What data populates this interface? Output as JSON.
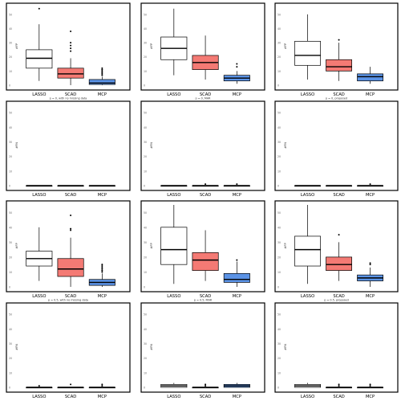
{
  "chart_data": [
    {
      "type": "boxplot",
      "ylabel": "#FP",
      "xlabel": "p = 0, with no missing data",
      "yticks": [
        "0",
        "10",
        "20",
        "30",
        "40",
        "50"
      ],
      "ylim": [
        0,
        55
      ],
      "categories": [
        "LASSO",
        "SCAD",
        "MCP"
      ],
      "series": [
        {
          "category": "LASSO",
          "fill": "#ffffff",
          "min": 3,
          "q1": 12,
          "median": 19,
          "q3": 25,
          "max": 43,
          "outliers": [
            54
          ]
        },
        {
          "category": "SCAD",
          "fill": "#f47a74",
          "min": 0,
          "q1": 5,
          "median": 8,
          "q3": 12,
          "max": 19,
          "outliers": [
            24,
            26,
            28,
            30,
            38
          ]
        },
        {
          "category": "MCP",
          "fill": "#5b93e6",
          "min": 0,
          "q1": 0.5,
          "median": 1.5,
          "q3": 4,
          "max": 6,
          "outliers": [
            7,
            8,
            9,
            10,
            11,
            12
          ]
        }
      ]
    },
    {
      "type": "boxplot",
      "ylabel": "#FP",
      "xlabel": "p = 0, MAR",
      "yticks": [
        "0",
        "10",
        "20",
        "30",
        "40",
        "50"
      ],
      "ylim": [
        0,
        55
      ],
      "categories": [
        "LASSO",
        "SCAD",
        "MCP"
      ],
      "series": [
        {
          "category": "LASSO",
          "fill": "#ffffff",
          "min": 7,
          "q1": 18,
          "median": 26,
          "q3": 34,
          "max": 54,
          "outliers": []
        },
        {
          "category": "SCAD",
          "fill": "#f47a74",
          "min": 4,
          "q1": 11,
          "median": 16,
          "q3": 21,
          "max": 35,
          "outliers": []
        },
        {
          "category": "MCP",
          "fill": "#5b93e6",
          "min": 1,
          "q1": 3,
          "median": 5,
          "q3": 7,
          "max": 10,
          "outliers": [
            13,
            15
          ]
        }
      ]
    },
    {
      "type": "boxplot",
      "ylabel": "#FP",
      "xlabel": "p = 0, proposed",
      "yticks": [
        "0",
        "10",
        "20",
        "30",
        "40",
        "50"
      ],
      "ylim": [
        0,
        55
      ],
      "categories": [
        "LASSO",
        "SCAD",
        "MCP"
      ],
      "series": [
        {
          "category": "LASSO",
          "fill": "#ffffff",
          "min": 4,
          "q1": 14,
          "median": 21,
          "q3": 31,
          "max": 50,
          "outliers": []
        },
        {
          "category": "SCAD",
          "fill": "#f47a74",
          "min": 3,
          "q1": 10,
          "median": 13,
          "q3": 18,
          "max": 30,
          "outliers": [
            32
          ]
        },
        {
          "category": "MCP",
          "fill": "#5b93e6",
          "min": 1,
          "q1": 3,
          "median": 6,
          "q3": 8,
          "max": 13,
          "outliers": []
        }
      ]
    },
    {
      "type": "boxplot",
      "ylabel": "#FN",
      "xlabel": "",
      "yticks": [
        "0",
        "10",
        "20",
        "30",
        "40",
        "50"
      ],
      "ylim": [
        0,
        55
      ],
      "categories": [
        "LASSO",
        "SCAD",
        "MCP"
      ],
      "series": [
        {
          "category": "LASSO",
          "fill": "#ffffff",
          "min": 0,
          "q1": 0,
          "median": 0,
          "q3": 0,
          "max": 0,
          "outliers": []
        },
        {
          "category": "SCAD",
          "fill": "#f47a74",
          "min": 0,
          "q1": 0,
          "median": 0,
          "q3": 0,
          "max": 0,
          "outliers": []
        },
        {
          "category": "MCP",
          "fill": "#5b93e6",
          "min": 0,
          "q1": 0,
          "median": 0,
          "q3": 0,
          "max": 0,
          "outliers": []
        }
      ]
    },
    {
      "type": "boxplot",
      "ylabel": "#FN",
      "xlabel": "",
      "yticks": [
        "0",
        "10",
        "20",
        "30",
        "40",
        "50"
      ],
      "ylim": [
        0,
        55
      ],
      "categories": [
        "LASSO",
        "SCAD",
        "MCP"
      ],
      "series": [
        {
          "category": "LASSO",
          "fill": "#ffffff",
          "min": 0,
          "q1": 0,
          "median": 0,
          "q3": 0,
          "max": 0,
          "outliers": []
        },
        {
          "category": "SCAD",
          "fill": "#f47a74",
          "min": 0,
          "q1": 0,
          "median": 0,
          "q3": 0,
          "max": 0,
          "outliers": [
            1
          ]
        },
        {
          "category": "MCP",
          "fill": "#5b93e6",
          "min": 0,
          "q1": 0,
          "median": 0,
          "q3": 0,
          "max": 0,
          "outliers": [
            1
          ]
        }
      ]
    },
    {
      "type": "boxplot",
      "ylabel": "#FN",
      "xlabel": "",
      "yticks": [
        "0",
        "10",
        "20",
        "30",
        "40",
        "50"
      ],
      "ylim": [
        0,
        55
      ],
      "categories": [
        "LASSO",
        "SCAD",
        "MCP"
      ],
      "series": [
        {
          "category": "LASSO",
          "fill": "#ffffff",
          "min": 0,
          "q1": 0,
          "median": 0,
          "q3": 0,
          "max": 0,
          "outliers": []
        },
        {
          "category": "SCAD",
          "fill": "#f47a74",
          "min": 0,
          "q1": 0,
          "median": 0,
          "q3": 0,
          "max": 0,
          "outliers": []
        },
        {
          "category": "MCP",
          "fill": "#5b93e6",
          "min": 0,
          "q1": 0,
          "median": 0,
          "q3": 0,
          "max": 0,
          "outliers": [
            1
          ]
        }
      ]
    },
    {
      "type": "boxplot",
      "ylabel": "#FP",
      "xlabel": "p = 0.5, with no missing data",
      "yticks": [
        "0",
        "10",
        "20",
        "30",
        "40",
        "50"
      ],
      "ylim": [
        0,
        55
      ],
      "categories": [
        "LASSO",
        "SCAD",
        "MCP"
      ],
      "series": [
        {
          "category": "LASSO",
          "fill": "#ffffff",
          "min": 4,
          "q1": 14,
          "median": 19,
          "q3": 24,
          "max": 40,
          "outliers": []
        },
        {
          "category": "SCAD",
          "fill": "#f47a74",
          "min": 0,
          "q1": 7,
          "median": 12,
          "q3": 19,
          "max": 33,
          "outliers": [
            38,
            39,
            48
          ]
        },
        {
          "category": "MCP",
          "fill": "#5b93e6",
          "min": 0,
          "q1": 1,
          "median": 3,
          "q3": 5,
          "max": 9,
          "outliers": [
            10,
            11,
            12,
            13,
            14,
            15
          ]
        }
      ]
    },
    {
      "type": "boxplot",
      "ylabel": "#FP",
      "xlabel": "p = 0.5, MAR",
      "yticks": [
        "0",
        "10",
        "20",
        "30",
        "40",
        "50"
      ],
      "ylim": [
        0,
        55
      ],
      "categories": [
        "LASSO",
        "SCAD",
        "MCP"
      ],
      "series": [
        {
          "category": "LASSO",
          "fill": "#ffffff",
          "min": 2,
          "q1": 15,
          "median": 25,
          "q3": 40,
          "max": 55,
          "outliers": []
        },
        {
          "category": "SCAD",
          "fill": "#f47a74",
          "min": 4,
          "q1": 11,
          "median": 18,
          "q3": 23,
          "max": 38,
          "outliers": []
        },
        {
          "category": "MCP",
          "fill": "#5b93e6",
          "min": 0,
          "q1": 3,
          "median": 5,
          "q3": 9,
          "max": 17,
          "outliers": [
            18
          ]
        }
      ]
    },
    {
      "type": "boxplot",
      "ylabel": "#FP",
      "xlabel": "p = 0.5, proposed",
      "yticks": [
        "0",
        "10",
        "20",
        "30",
        "40",
        "50"
      ],
      "ylim": [
        0,
        55
      ],
      "categories": [
        "LASSO",
        "SCAD",
        "MCP"
      ],
      "series": [
        {
          "category": "LASSO",
          "fill": "#ffffff",
          "min": 2,
          "q1": 14,
          "median": 25,
          "q3": 34,
          "max": 55,
          "outliers": []
        },
        {
          "category": "SCAD",
          "fill": "#f47a74",
          "min": 4,
          "q1": 11,
          "median": 15,
          "q3": 20,
          "max": 30,
          "outliers": [
            35
          ]
        },
        {
          "category": "MCP",
          "fill": "#5b93e6",
          "min": 0,
          "q1": 4,
          "median": 6,
          "q3": 8,
          "max": 13,
          "outliers": [
            15,
            16
          ]
        }
      ]
    },
    {
      "type": "boxplot",
      "ylabel": "#FN",
      "xlabel": "",
      "yticks": [
        "0",
        "10",
        "20",
        "30",
        "40",
        "50"
      ],
      "ylim": [
        0,
        55
      ],
      "categories": [
        "LASSO",
        "SCAD",
        "MCP"
      ],
      "series": [
        {
          "category": "LASSO",
          "fill": "#ffffff",
          "min": 0,
          "q1": 0,
          "median": 0,
          "q3": 0,
          "max": 0,
          "outliers": [
            1
          ]
        },
        {
          "category": "SCAD",
          "fill": "#f47a74",
          "min": 0,
          "q1": 0,
          "median": 0,
          "q3": 0,
          "max": 0,
          "outliers": [
            2
          ]
        },
        {
          "category": "MCP",
          "fill": "#5b93e6",
          "min": 0,
          "q1": 0,
          "median": 0,
          "q3": 0,
          "max": 0,
          "outliers": [
            1,
            2
          ]
        }
      ]
    },
    {
      "type": "boxplot",
      "ylabel": "#FN",
      "xlabel": "",
      "yticks": [
        "0",
        "10",
        "20",
        "30",
        "40",
        "50"
      ],
      "ylim": [
        0,
        55
      ],
      "categories": [
        "LASSO",
        "SCAD",
        "MCP"
      ],
      "series": [
        {
          "category": "LASSO",
          "fill": "#ffffff",
          "min": 0,
          "q1": 0,
          "median": 1,
          "q3": 2,
          "max": 3,
          "outliers": []
        },
        {
          "category": "SCAD",
          "fill": "#f47a74",
          "min": 0,
          "q1": 0,
          "median": 0,
          "q3": 0,
          "max": 0,
          "outliers": [
            1,
            2
          ]
        },
        {
          "category": "MCP",
          "fill": "#5b93e6",
          "min": 0,
          "q1": 0,
          "median": 1,
          "q3": 2,
          "max": 3,
          "outliers": []
        }
      ]
    },
    {
      "type": "boxplot",
      "ylabel": "#FN",
      "xlabel": "",
      "yticks": [
        "0",
        "10",
        "20",
        "30",
        "40",
        "50"
      ],
      "ylim": [
        0,
        55
      ],
      "categories": [
        "LASSO",
        "SCAD",
        "MCP"
      ],
      "series": [
        {
          "category": "LASSO",
          "fill": "#ffffff",
          "min": 0,
          "q1": 0,
          "median": 1,
          "q3": 2,
          "max": 3,
          "outliers": []
        },
        {
          "category": "SCAD",
          "fill": "#f47a74",
          "min": 0,
          "q1": 0,
          "median": 0,
          "q3": 0,
          "max": 0,
          "outliers": [
            1,
            2
          ]
        },
        {
          "category": "MCP",
          "fill": "#5b93e6",
          "min": 0,
          "q1": 0,
          "median": 0,
          "q3": 0,
          "max": 0,
          "outliers": [
            1,
            2
          ]
        }
      ]
    }
  ]
}
